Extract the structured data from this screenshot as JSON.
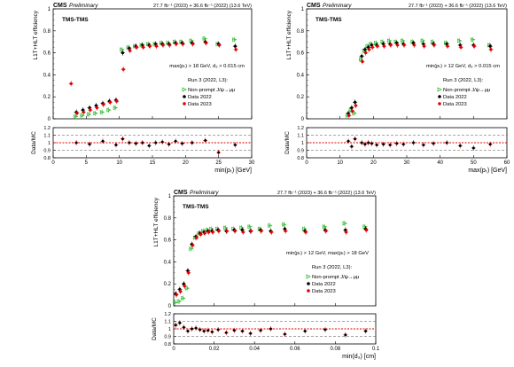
{
  "colors": {
    "data2022": "#000000",
    "data2023": "#e00000",
    "mc": "#33bb33",
    "frame": "#000000",
    "dashed": "#555555"
  },
  "chart_data": [
    {
      "type": "scatter",
      "header": {
        "experiment": "CMS",
        "status": "Preliminary",
        "lumi": "27.7 fb⁻¹ (2023) + 36.6 fb⁻¹ (2022) (13.6 TeV)"
      },
      "label": "TMS-TMS",
      "selection": "max(pₜ) > 18 GeV, d₃ > 0.015 cm",
      "run_label": "Run 3 (2022, L3):",
      "legend": [
        "Non-prompt J/ψ→μμ",
        "Data 2022",
        "Data 2023"
      ],
      "legend_position": "middle-right",
      "xlabel": "min(pₜ) [GeV]",
      "ylabel": "L1T+HLT efficiency",
      "ratio_ylabel": "Data/MC",
      "xlim": [
        0,
        30
      ],
      "ylim": [
        0,
        1
      ],
      "ratio_ylim": [
        0.8,
        1.2
      ],
      "xticks": [
        "0",
        "5",
        "10",
        "15",
        "20",
        "25",
        "30"
      ],
      "yticks": [
        "0",
        "0.2",
        "0.4",
        "0.6",
        "0.8",
        "1"
      ],
      "ratio_yticks": [
        "0.8",
        "0.9",
        "1",
        "1.1",
        "1.2"
      ],
      "series": [
        {
          "name": "Non-prompt J/ψ→μμ",
          "color": "mc",
          "x": [
            3.5,
            4.5,
            5.5,
            6.5,
            7.5,
            8.5,
            9.5,
            10.5,
            11.5,
            12.5,
            13.5,
            14.5,
            15.5,
            16.5,
            17.5,
            18.5,
            19.5,
            21,
            23,
            25,
            27.5
          ],
          "y": [
            0.02,
            0.03,
            0.04,
            0.05,
            0.06,
            0.08,
            0.1,
            0.63,
            0.65,
            0.66,
            0.67,
            0.68,
            0.68,
            0.69,
            0.69,
            0.7,
            0.7,
            0.71,
            0.73,
            0.68,
            0.72
          ]
        },
        {
          "name": "Data 2022",
          "color": "data2022",
          "x": [
            3.5,
            4.5,
            5.5,
            6.5,
            7.5,
            8.5,
            9.5,
            10.5,
            11.5,
            12.5,
            13.5,
            14.5,
            15.5,
            16.5,
            17.5,
            18.5,
            19.5,
            21,
            23,
            25,
            27.5
          ],
          "y": [
            0.06,
            0.08,
            0.1,
            0.12,
            0.14,
            0.16,
            0.17,
            0.6,
            0.64,
            0.66,
            0.67,
            0.67,
            0.68,
            0.68,
            0.68,
            0.69,
            0.69,
            0.69,
            0.7,
            0.68,
            0.66
          ]
        },
        {
          "name": "Data 2023",
          "color": "data2023",
          "x": [
            2.6,
            3.5,
            4.5,
            5.5,
            6.5,
            7.5,
            8.5,
            9.5,
            10.5,
            11.5,
            12.5,
            13.5,
            14.5,
            15.5,
            16.5,
            17.5,
            18.5,
            19.5,
            21,
            23,
            25,
            27.5
          ],
          "y": [
            0.32,
            0.05,
            0.06,
            0.08,
            0.1,
            0.13,
            0.15,
            0.16,
            0.45,
            0.62,
            0.65,
            0.65,
            0.66,
            0.66,
            0.67,
            0.67,
            0.68,
            0.68,
            0.68,
            0.69,
            0.67,
            0.63
          ]
        }
      ],
      "ratio": {
        "x": [
          3.5,
          5.5,
          7.5,
          9.5,
          10.5,
          11.5,
          12.5,
          13.5,
          14.5,
          15.5,
          16.5,
          17.5,
          18.5,
          19.5,
          21,
          23,
          25,
          27.5
        ],
        "y": [
          1.0,
          0.98,
          1.02,
          0.97,
          1.05,
          1.0,
          0.99,
          1.0,
          0.96,
          1.0,
          1.01,
          0.98,
          1.02,
          0.99,
          1.0,
          1.03,
          0.87,
          0.97
        ]
      }
    },
    {
      "type": "scatter",
      "header": {
        "experiment": "CMS",
        "status": "Preliminary",
        "lumi": "27.7 fb⁻¹ (2023) + 36.6 fb⁻¹ (2022) (13.6 TeV)"
      },
      "label": "TMS-TMS",
      "selection": "min(pₜ) > 12 GeV, d₃ > 0.015 cm",
      "run_label": "Run 3 (2022, L3):",
      "legend": [
        "Non-prompt J/ψ→μμ",
        "Data 2022",
        "Data 2023"
      ],
      "legend_position": "middle-right",
      "xlabel": "max(pₜ) [GeV]",
      "ylabel": "L1T+HLT efficiency",
      "ratio_ylabel": "Data/MC",
      "xlim": [
        0,
        60
      ],
      "ylim": [
        0,
        1
      ],
      "ratio_ylim": [
        0.8,
        1.2
      ],
      "xticks": [
        "0",
        "10",
        "20",
        "30",
        "40",
        "50",
        "60"
      ],
      "yticks": [
        "0",
        "0.2",
        "0.4",
        "0.6",
        "0.8",
        "1"
      ],
      "ratio_yticks": [
        "0.8",
        "0.9",
        "1",
        "1.1",
        "1.2"
      ],
      "series": [
        {
          "name": "Non-prompt J/ψ→μμ",
          "color": "mc",
          "x": [
            12.5,
            13.5,
            14.5,
            16.5,
            17.5,
            18.5,
            19.5,
            21,
            23,
            25,
            27,
            29,
            32,
            35,
            38,
            42,
            46,
            50,
            55
          ],
          "y": [
            0.03,
            0.08,
            0.05,
            0.54,
            0.62,
            0.66,
            0.68,
            0.69,
            0.7,
            0.71,
            0.7,
            0.71,
            0.7,
            0.71,
            0.7,
            0.69,
            0.71,
            0.72,
            0.67
          ]
        },
        {
          "name": "Data 2022",
          "color": "data2022",
          "x": [
            12.5,
            13.5,
            14.5,
            16.5,
            17.5,
            18.5,
            19.5,
            21,
            23,
            25,
            27,
            29,
            32,
            35,
            38,
            42,
            46,
            50,
            55
          ],
          "y": [
            0.05,
            0.1,
            0.15,
            0.57,
            0.63,
            0.65,
            0.67,
            0.67,
            0.68,
            0.68,
            0.69,
            0.68,
            0.69,
            0.68,
            0.68,
            0.68,
            0.67,
            0.67,
            0.66
          ]
        },
        {
          "name": "Data 2023",
          "color": "data2023",
          "x": [
            12.5,
            13.5,
            14.5,
            16.5,
            17.5,
            18.5,
            19.5,
            21,
            23,
            25,
            27,
            29,
            32,
            35,
            38,
            42,
            46,
            50,
            55
          ],
          "y": [
            0.03,
            0.07,
            0.12,
            0.52,
            0.6,
            0.63,
            0.65,
            0.66,
            0.66,
            0.67,
            0.67,
            0.67,
            0.67,
            0.66,
            0.67,
            0.66,
            0.65,
            0.66,
            0.63
          ]
        }
      ],
      "ratio": {
        "x": [
          12.5,
          13.5,
          14.5,
          16.5,
          17.5,
          18.5,
          19.5,
          21,
          23,
          25,
          27,
          29,
          32,
          35,
          38,
          42,
          46,
          50,
          55
        ],
        "y": [
          1.02,
          0.95,
          1.05,
          1.0,
          0.98,
          1.0,
          0.99,
          0.97,
          0.98,
          0.97,
          0.99,
          0.98,
          1.0,
          0.97,
          0.99,
          1.0,
          0.96,
          0.93,
          0.98
        ]
      }
    },
    {
      "type": "scatter",
      "header": {
        "experiment": "CMS",
        "status": "Preliminary",
        "lumi": "27.7 fb⁻¹ (2023) + 36.6 fb⁻¹ (2022) (13.6 TeV)"
      },
      "label": "TMS-TMS",
      "selection": "min(pₜ) > 12 GeV, max(pₜ) > 18 GeV",
      "run_label": "Run 3 (2022, L3):",
      "legend": [
        "Non-prompt J/ψ→μμ",
        "Data 2022",
        "Data 2023"
      ],
      "legend_position": "middle-right",
      "xlabel": "min(d₃) [cm]",
      "ylabel": "L1T+HLT efficiency",
      "ratio_ylabel": "Data/MC",
      "xlim": [
        0,
        0.1
      ],
      "ylim": [
        0,
        1
      ],
      "ratio_ylim": [
        0.8,
        1.2
      ],
      "xticks": [
        "0",
        "0.02",
        "0.04",
        "0.06",
        "0.08",
        "0.1"
      ],
      "yticks": [
        "0",
        "0.2",
        "0.4",
        "0.6",
        "0.8",
        "1"
      ],
      "ratio_yticks": [
        "0.8",
        "0.9",
        "1",
        "1.1",
        "1.2"
      ],
      "series": [
        {
          "name": "Non-prompt J/ψ→μμ",
          "color": "mc",
          "x": [
            0.001,
            0.003,
            0.005,
            0.007,
            0.009,
            0.011,
            0.013,
            0.015,
            0.017,
            0.019,
            0.022,
            0.026,
            0.03,
            0.034,
            0.038,
            0.043,
            0.048,
            0.055,
            0.065,
            0.075,
            0.085,
            0.095
          ],
          "y": [
            0.03,
            0.04,
            0.07,
            0.16,
            0.52,
            0.62,
            0.66,
            0.68,
            0.69,
            0.7,
            0.7,
            0.71,
            0.7,
            0.71,
            0.72,
            0.7,
            0.73,
            0.74,
            0.7,
            0.72,
            0.75,
            0.72
          ]
        },
        {
          "name": "Data 2022",
          "color": "data2022",
          "x": [
            0.001,
            0.003,
            0.005,
            0.007,
            0.009,
            0.011,
            0.013,
            0.015,
            0.017,
            0.019,
            0.022,
            0.026,
            0.03,
            0.034,
            0.038,
            0.043,
            0.048,
            0.055,
            0.065,
            0.075,
            0.085,
            0.095
          ],
          "y": [
            0.11,
            0.15,
            0.2,
            0.32,
            0.56,
            0.63,
            0.66,
            0.67,
            0.68,
            0.68,
            0.69,
            0.68,
            0.69,
            0.69,
            0.68,
            0.69,
            0.68,
            0.7,
            0.68,
            0.69,
            0.69,
            0.7
          ]
        },
        {
          "name": "Data 2023",
          "color": "data2023",
          "x": [
            0.001,
            0.003,
            0.005,
            0.007,
            0.009,
            0.011,
            0.013,
            0.015,
            0.017,
            0.019,
            0.022,
            0.026,
            0.03,
            0.034,
            0.038,
            0.043,
            0.048,
            0.055,
            0.065,
            0.075,
            0.085,
            0.095
          ],
          "y": [
            0.1,
            0.13,
            0.18,
            0.3,
            0.55,
            0.62,
            0.65,
            0.66,
            0.67,
            0.67,
            0.68,
            0.68,
            0.68,
            0.67,
            0.68,
            0.68,
            0.67,
            0.68,
            0.67,
            0.68,
            0.67,
            0.69
          ]
        }
      ],
      "ratio": {
        "x": [
          0.001,
          0.003,
          0.005,
          0.007,
          0.009,
          0.011,
          0.013,
          0.015,
          0.017,
          0.019,
          0.022,
          0.026,
          0.03,
          0.034,
          0.038,
          0.043,
          0.048,
          0.055,
          0.065,
          0.075,
          0.085,
          0.095
        ],
        "y": [
          1.05,
          1.08,
          1.02,
          0.97,
          1.0,
          1.01,
          0.99,
          0.97,
          0.98,
          0.96,
          0.99,
          0.95,
          0.98,
          0.97,
          0.94,
          0.98,
          1.0,
          0.93,
          0.97,
          0.99,
          0.92,
          0.97
        ]
      }
    }
  ]
}
